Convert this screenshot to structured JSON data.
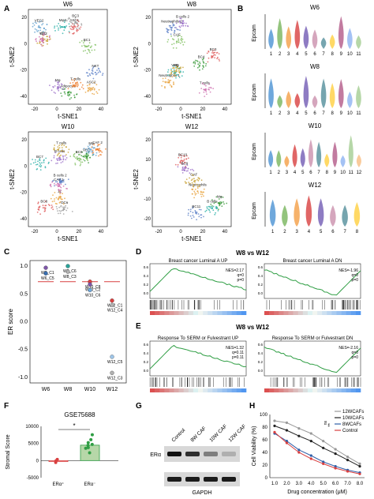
{
  "panel_letters": [
    "A",
    "B",
    "C",
    "D",
    "E",
    "F",
    "G",
    "H"
  ],
  "tsne": {
    "xlabel": "t-SNE1",
    "ylabel": "t-SNE2",
    "xticks": [
      "-20",
      "0",
      "20",
      "40"
    ],
    "yticks_w6": [
      "20",
      "0",
      "-20",
      "-40"
    ],
    "yticks_w10": [
      "20",
      "0",
      "-20",
      "-40"
    ],
    "yticks_w12": [
      "20",
      "10",
      "0",
      "-10",
      "-20"
    ],
    "plots": [
      {
        "title": "W6",
        "labels": [
          "ASC2",
          "Adipocyte",
          "NKT",
          "ASC1",
          "Mφ",
          "Mφ2",
          "BC2",
          "BC1",
          "VEC",
          "VEC2",
          "BC3",
          "T cells"
        ]
      },
      {
        "title": "W8",
        "labels": [
          "Neutrophils 1",
          "BC4",
          "Neutrophils 2",
          "BC3",
          "B cells 2",
          "VEC",
          "Mφ",
          "CAF",
          "T cells"
        ]
      },
      {
        "title": "W10",
        "labels": [
          "12",
          "VEC",
          "B cells 2",
          "BC8",
          "B cells",
          "BC7",
          "T cells",
          "BC6",
          "CAF 1",
          "Mφ",
          "DCs",
          "CAF 2"
        ]
      },
      {
        "title": "W12",
        "labels": [
          "Neutrophils",
          "Mφ",
          "BC11",
          "BC10",
          "BC9",
          "B cells",
          "CAF"
        ]
      }
    ]
  },
  "violin": {
    "ylabel": "Epcam",
    "panels": [
      {
        "title": "W6",
        "clusters": [
          "1",
          "2",
          "3",
          "4",
          "5",
          "6",
          "7",
          "8",
          "9",
          "10",
          "11"
        ]
      },
      {
        "title": "W8",
        "clusters": [
          "1",
          "2",
          "3",
          "4",
          "5",
          "6",
          "7",
          "8",
          "9",
          "10",
          "11"
        ]
      },
      {
        "title": "W10",
        "clusters": [
          "1",
          "2",
          "3",
          "4",
          "5",
          "6",
          "7",
          "8",
          "9",
          "10",
          "11",
          "12"
        ]
      },
      {
        "title": "W12",
        "clusters": [
          "1",
          "2",
          "3",
          "4",
          "5",
          "6",
          "7",
          "8"
        ]
      }
    ]
  },
  "chart_data": [
    {
      "type": "scatter",
      "panel": "C",
      "ylabel": "ER score",
      "categories": [
        "W6",
        "W8",
        "W10",
        "W12"
      ],
      "yticks": [
        "1.0",
        "0.5",
        "0.0",
        "-0.5",
        "-1.0"
      ],
      "ylim": [
        -1.1,
        1.1
      ],
      "points": [
        {
          "group": "W6",
          "label": "W6_C1",
          "y": 0.97,
          "color": "#7e57a8"
        },
        {
          "group": "W6",
          "label": "W6_C5",
          "y": 0.87,
          "color": "#3a6fb0"
        },
        {
          "group": "W8",
          "label": "W8_C6",
          "y": 1.0,
          "color": "#2ba39a"
        },
        {
          "group": "W8",
          "label": "W8_C3",
          "y": 0.9,
          "color": "#b0b0b0"
        },
        {
          "group": "W10",
          "label": "W10_C8",
          "y": 0.72,
          "color": "#d94040"
        },
        {
          "group": "W10",
          "label": "W10_C2",
          "y": 0.67,
          "color": "#7e57a8"
        },
        {
          "group": "W10",
          "label": "W10_C6",
          "y": 0.57,
          "color": "#6fa8dc"
        },
        {
          "group": "W12",
          "label": "W12_C1",
          "y": 0.38,
          "color": "#d94040"
        },
        {
          "group": "W12",
          "label": "W12_C4",
          "y": 0.3,
          "color": "#b0b0b0"
        },
        {
          "group": "W12",
          "label": "W12_C5",
          "y": -0.63,
          "color": "#9ec5e8"
        },
        {
          "group": "W12",
          "label": "W12_C3",
          "y": -0.92,
          "color": "#b0b0b0"
        }
      ],
      "threshold": 0.72
    },
    {
      "type": "bar",
      "panel": "F",
      "title": "GSE75688",
      "ylabel": "Stromal Score",
      "categories": [
        "ERα⁺",
        "ERα⁻"
      ],
      "values": [
        -300,
        4500
      ],
      "yticks": [
        "10000",
        "5000",
        "0",
        "-5000"
      ],
      "ylim": [
        -5000,
        10000
      ],
      "significance": "*",
      "colors": [
        "#d94040",
        "#2f9e44"
      ]
    },
    {
      "type": "line",
      "panel": "H",
      "xlabel": "Drug concentration (μM)",
      "ylabel": "Cell Viability (%)",
      "x": [
        "1.0",
        "2.0",
        "3.0",
        "4.0",
        "5.0",
        "6.0",
        "7.0",
        "8.0"
      ],
      "yticks": [
        "100",
        "80",
        "60",
        "40",
        "20",
        "0"
      ],
      "ylim": [
        0,
        100
      ],
      "series": [
        {
          "name": "12WCAFs",
          "values": [
            90,
            87,
            78,
            70,
            58,
            45,
            33,
            22
          ],
          "color": "#999999"
        },
        {
          "name": "10WCAFs",
          "values": [
            82,
            75,
            66,
            58,
            47,
            38,
            28,
            18
          ],
          "color": "#222222"
        },
        {
          "name": "8WCAFs",
          "values": [
            70,
            58,
            44,
            35,
            25,
            18,
            12,
            8
          ],
          "color": "#2f5fa8"
        },
        {
          "name": "Control",
          "values": [
            72,
            55,
            40,
            30,
            22,
            15,
            10,
            6
          ],
          "color": "#d94040"
        }
      ],
      "significance": [
        "ns",
        "**"
      ]
    }
  ],
  "gsea": {
    "title_d": "W8 vs W12",
    "title_e": "W8 vs W12",
    "plots": [
      {
        "name": "Breast cancer Luminal A UP",
        "nes": "NES=2.17",
        "q": "q=0",
        "p": "p=0"
      },
      {
        "name": "Breast cancer Luminal A DN",
        "nes": "NES=-1.96",
        "q": "q=0",
        "p": "p=0"
      },
      {
        "name": "Response To SERM or Fulvestrant UP",
        "nes": "NES=1.32",
        "q": "q=0.11",
        "p": "p=0.11"
      },
      {
        "name": "Response To SERM or Fulvestrant DN",
        "nes": "NES=-2.16",
        "q": "q=0",
        "p": "p=0"
      }
    ],
    "yticks": [
      "0.6",
      "0.4",
      "0.2",
      "0.0",
      "-0.2",
      "-0.4"
    ]
  },
  "western": {
    "lanes": [
      "Control",
      "8W CAF",
      "10W CAF",
      "12W CAF"
    ],
    "proteins": [
      "ERα",
      "GAPDH"
    ],
    "era_intensity": [
      1.0,
      0.85,
      0.45,
      0.2
    ]
  }
}
